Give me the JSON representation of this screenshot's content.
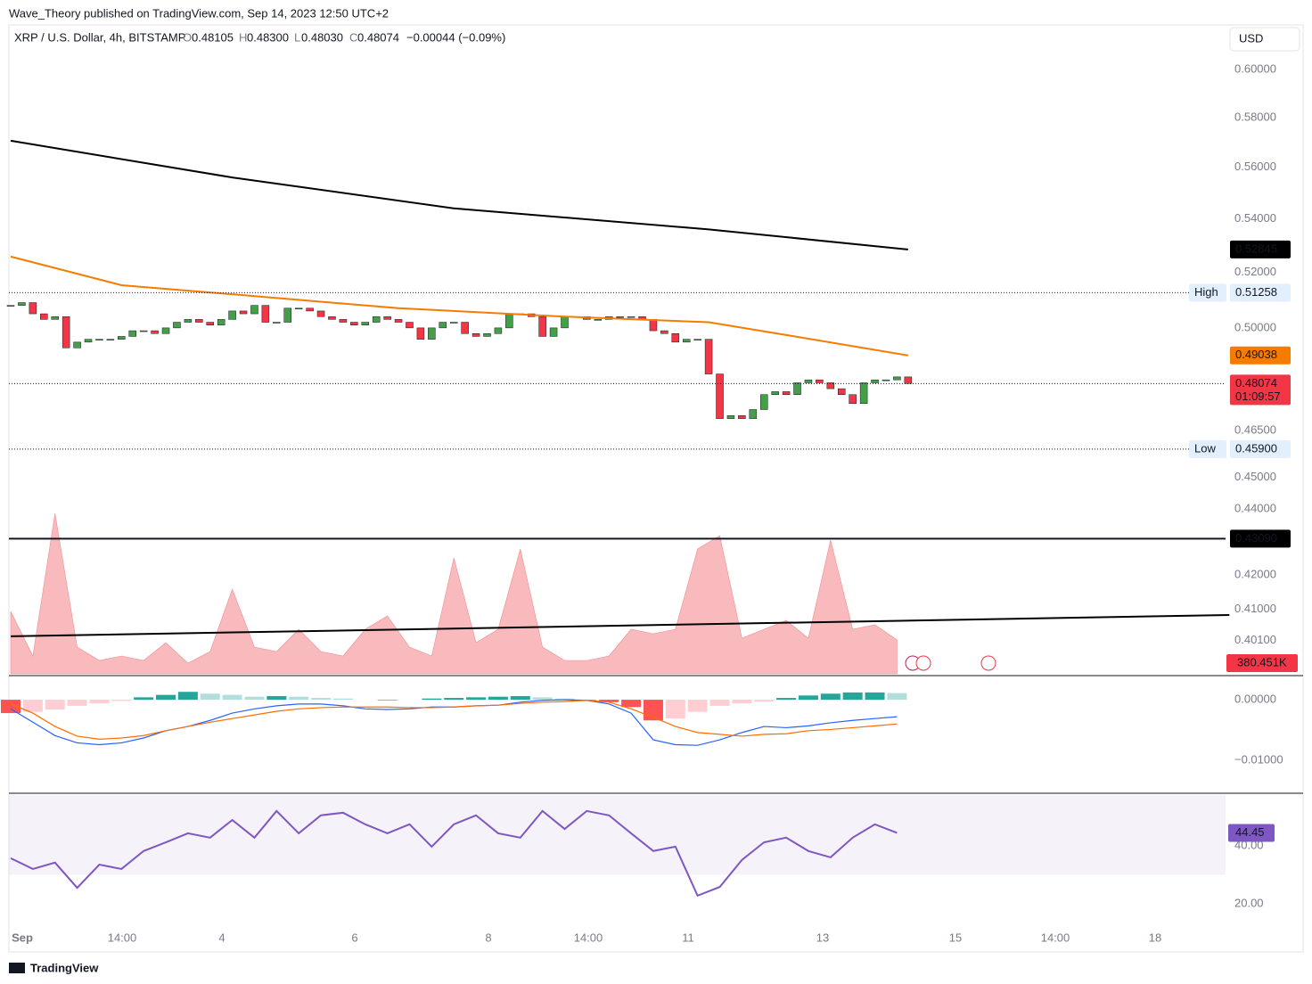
{
  "header": {
    "published": "Wave_Theory published on TradingView.com, Sep 14, 2023 12:50 UTC+2",
    "symbol": "XRP / U.S. Dollar, 4h, BITSTAMP",
    "o_label": "O",
    "o": "0.48105",
    "h_label": "H",
    "h": "0.48300",
    "l_label": "L",
    "l": "0.48030",
    "c_label": "C",
    "c": "0.48074",
    "change": "−0.00044 (−0.09%)",
    "currency": "USD",
    "footer": "TradingView"
  },
  "chart_data": {
    "type": "candlestick",
    "log_scale": true,
    "ylim": [
      0.3912,
      0.6184
    ],
    "yticks": [
      {
        "value": 0.6,
        "label": "0.60000"
      },
      {
        "value": 0.58,
        "label": "0.58000"
      },
      {
        "value": 0.56,
        "label": "0.56000"
      },
      {
        "value": 0.54,
        "label": "0.54000"
      },
      {
        "value": 0.52,
        "label": "0.52000"
      },
      {
        "value": 0.5,
        "label": "0.50000"
      },
      {
        "value": 0.465,
        "label": "0.46500"
      },
      {
        "value": 0.45,
        "label": "0.45000"
      },
      {
        "value": 0.44,
        "label": "0.44000"
      },
      {
        "value": 0.42,
        "label": "0.42000"
      },
      {
        "value": 0.41,
        "label": "0.41000"
      },
      {
        "value": 0.401,
        "label": "0.40100"
      }
    ],
    "xticks": [
      "Sep",
      "14:00",
      "4",
      "6",
      "8",
      "14:00",
      "11",
      "13",
      "15",
      "14:00",
      "18"
    ],
    "up_color": "#43a047",
    "down_color": "#f23645",
    "close": [
      0.508,
      0.509,
      0.505,
      0.503,
      0.504,
      0.493,
      0.495,
      0.496,
      0.496,
      0.496,
      0.497,
      0.499,
      0.499,
      0.498,
      0.5,
      0.502,
      0.503,
      0.502,
      0.501,
      0.503,
      0.506,
      0.505,
      0.508,
      0.502,
      0.502,
      0.507,
      0.507,
      0.506,
      0.504,
      0.503,
      0.502,
      0.501,
      0.502,
      0.504,
      0.503,
      0.502,
      0.5,
      0.496,
      0.5,
      0.502,
      0.502,
      0.498,
      0.497,
      0.498,
      0.5,
      0.505,
      0.505,
      0.504,
      0.497,
      0.5,
      0.504,
      0.504,
      0.503,
      0.503,
      0.504,
      0.504,
      0.504,
      0.503,
      0.499,
      0.498,
      0.495,
      0.496,
      0.496,
      0.484,
      0.469,
      0.47,
      0.469,
      0.472,
      0.477,
      0.478,
      0.477,
      0.481,
      0.482,
      0.481,
      0.479,
      0.477,
      0.474,
      0.481,
      0.482,
      0.482,
      0.483,
      0.48074
    ],
    "lines": [
      {
        "color": "#000000",
        "x": [
          0,
          20,
          40,
          63,
          81
        ],
        "values": [
          0.5706,
          0.556,
          0.544,
          0.536,
          0.52845
        ]
      },
      {
        "color": "#f57c00",
        "x": [
          0,
          10,
          20,
          35,
          50,
          63,
          70,
          81
        ],
        "values": [
          0.5258,
          0.5153,
          0.512,
          0.507,
          0.504,
          0.502,
          0.4975,
          0.49038
        ]
      },
      {
        "color": "#000000",
        "x": [
          0,
          110
        ],
        "values": [
          0.4022,
          0.4083
        ]
      }
    ],
    "levels": [
      {
        "value": 0.4309,
        "label": "0.43090",
        "color": "#000000",
        "text_color": "#ffffff",
        "solid": true
      },
      {
        "value": 0.51258,
        "label": "0.51258",
        "name": "High",
        "color": "#e3effd",
        "text_color": "#131722"
      },
      {
        "value": 0.459,
        "label": "0.45900",
        "name": "Low",
        "color": "#e3effd",
        "text_color": "#131722"
      },
      {
        "value": 0.48074,
        "label": "0.48074",
        "timer": "01:09:57",
        "color": "#f23645",
        "text_color": "#ffffff"
      },
      {
        "value": 0.52845,
        "label": "0.52845",
        "color": "#000000",
        "text_color": "#ffffff",
        "badge_only": true
      },
      {
        "value": 0.49038,
        "label": "0.49038",
        "color": "#f57c00",
        "text_color": "#ffffff",
        "badge_only": true
      }
    ],
    "volume": {
      "color": "#f7a9ad",
      "x": [
        0,
        2,
        4,
        6,
        8,
        10,
        12,
        14,
        16,
        18,
        20,
        22,
        24,
        26,
        28,
        30,
        32,
        34,
        36,
        38,
        40,
        42,
        44,
        46,
        48,
        50,
        52,
        54,
        56,
        58,
        60,
        62,
        64,
        66,
        68,
        70,
        72,
        74,
        76,
        78,
        80
      ],
      "values": [
        700,
        200,
        1800,
        300,
        150,
        200,
        150,
        350,
        120,
        250,
        950,
        300,
        250,
        500,
        250,
        200,
        500,
        650,
        300,
        200,
        1300,
        350,
        500,
        1400,
        300,
        150,
        150,
        200,
        500,
        450,
        500,
        1400,
        1550,
        400,
        500,
        600,
        400,
        1500,
        500,
        550,
        380.451
      ],
      "last_label": {
        "value": 380.451,
        "label": "380.451K"
      }
    },
    "macd": {
      "ylim": [
        -0.0154,
        0.00368
      ],
      "yticks": [
        {
          "value": 0,
          "label": "0.00000"
        },
        {
          "value": -0.01,
          "label": "−0.01000"
        }
      ],
      "x": [
        0,
        2,
        4,
        6,
        8,
        10,
        12,
        14,
        16,
        18,
        20,
        22,
        24,
        26,
        28,
        30,
        32,
        34,
        36,
        38,
        40,
        42,
        44,
        46,
        48,
        50,
        52,
        54,
        56,
        58,
        60,
        62,
        64,
        66,
        68,
        70,
        72,
        74,
        76,
        78,
        80
      ],
      "macd": [
        -0.0015,
        -0.0037,
        -0.0059,
        -0.0071,
        -0.0074,
        -0.0071,
        -0.0063,
        -0.0051,
        -0.0044,
        -0.0034,
        -0.0022,
        -0.0015,
        -0.001,
        -0.0007,
        -0.0007,
        -0.001,
        -0.0015,
        -0.0016,
        -0.0015,
        -0.0012,
        -0.0012,
        -0.001,
        -0.0009,
        -0.0004,
        -0.0001,
        0,
        -0.0001,
        -0.0007,
        -0.0022,
        -0.0066,
        -0.0074,
        -0.0075,
        -0.0066,
        -0.0054,
        -0.0044,
        -0.0046,
        -0.0043,
        -0.0038,
        -0.0034,
        -0.0031,
        -0.0028
      ],
      "signal": [
        -0.0007,
        -0.0022,
        -0.0044,
        -0.006,
        -0.0065,
        -0.0063,
        -0.0059,
        -0.0051,
        -0.0044,
        -0.0037,
        -0.0031,
        -0.0025,
        -0.0019,
        -0.0015,
        -0.0013,
        -0.0012,
        -0.0012,
        -0.0012,
        -0.0013,
        -0.0013,
        -0.0012,
        -0.001,
        -0.0009,
        -0.0006,
        -0.0004,
        -0.0003,
        -0.0001,
        -0.0004,
        -0.0015,
        -0.0029,
        -0.0044,
        -0.0054,
        -0.0057,
        -0.006,
        -0.0057,
        -0.0056,
        -0.0051,
        -0.0049,
        -0.0046,
        -0.0043,
        -0.004
      ],
      "hist": [
        -0.0022,
        -0.002,
        -0.0016,
        -0.001,
        -0.0006,
        -0.0002,
        0.0004,
        0.0008,
        0.0013,
        0.001,
        0.0008,
        0.0005,
        0.0006,
        0.0005,
        0.0003,
        0.0002,
        0,
        -0.0001,
        0,
        0.0002,
        0.0003,
        0.0004,
        0.0005,
        0.0006,
        0.0004,
        0.0002,
        -0.0001,
        -0.0004,
        -0.0012,
        -0.0034,
        -0.0031,
        -0.002,
        -0.001,
        -0.0006,
        -0.0003,
        0.0003,
        0.0007,
        0.001,
        0.0012,
        0.0012,
        0.0011
      ],
      "macd_color": "#2962ff",
      "signal_color": "#ff6d00"
    },
    "rsi": {
      "ylim": [
        12,
        57.5
      ],
      "band": [
        30,
        70
      ],
      "yticks": [
        {
          "value": 40,
          "label": "40.00"
        },
        {
          "value": 20,
          "label": "20.00"
        }
      ],
      "color": "#7e57c2",
      "x": [
        0,
        2,
        4,
        6,
        8,
        10,
        12,
        14,
        16,
        18,
        20,
        22,
        24,
        26,
        28,
        30,
        32,
        34,
        36,
        38,
        40,
        42,
        44,
        46,
        48,
        50,
        52,
        54,
        56,
        58,
        60,
        62,
        64,
        66,
        68,
        70,
        72,
        74,
        76,
        78,
        80
      ],
      "values": [
        35.7,
        32,
        34.2,
        25.5,
        33.5,
        32,
        38.2,
        41.2,
        44.3,
        42.8,
        48.9,
        42.8,
        52,
        44.3,
        50.5,
        51.4,
        47.4,
        44.3,
        47.4,
        39.7,
        47.4,
        50.5,
        44.3,
        42.8,
        52,
        45.8,
        52,
        50.5,
        44.3,
        38.2,
        39.7,
        22.8,
        25.8,
        35.1,
        41.2,
        42.8,
        38.2,
        36,
        42.8,
        47.4,
        44.45
      ],
      "last_label": {
        "value": 44.45,
        "label": "44.45"
      }
    }
  }
}
